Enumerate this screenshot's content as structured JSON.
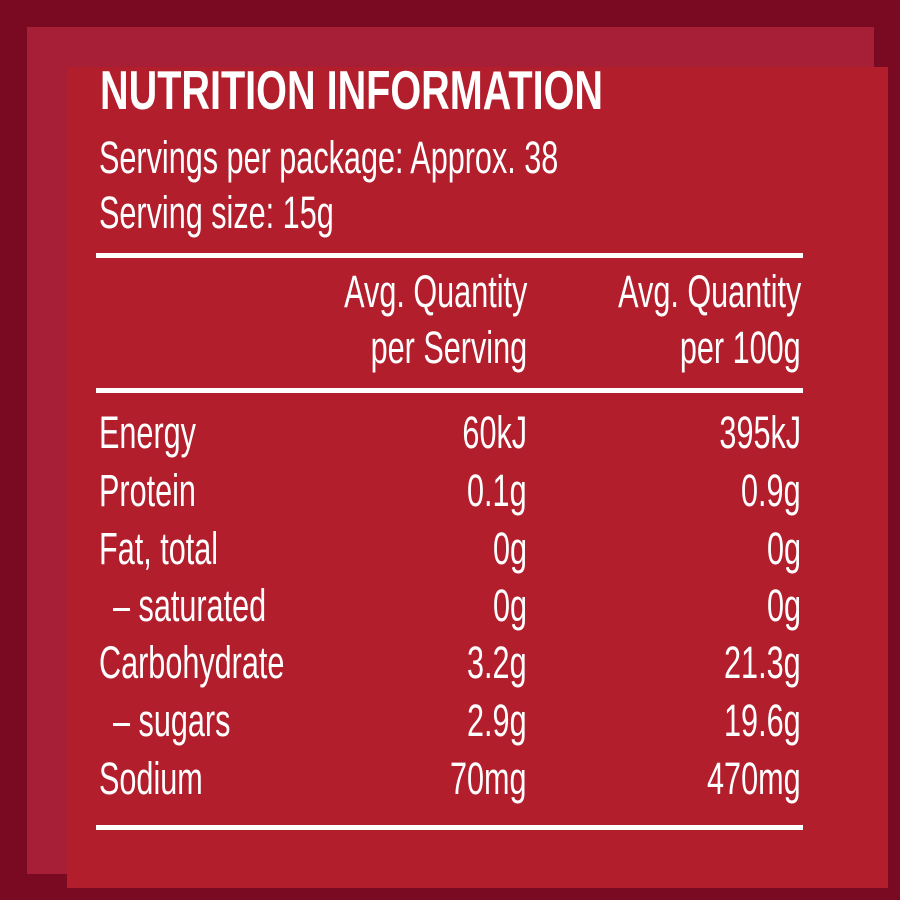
{
  "label": {
    "title": "NUTRITION INFORMATION",
    "servings_per_package": "Servings per package: Approx. 38",
    "serving_size": "Serving size: 15g",
    "columns": [
      {
        "line1": "Avg. Quantity",
        "line2": "per Serving"
      },
      {
        "line1": "Avg. Quantity",
        "line2": "per 100g"
      }
    ],
    "rows": [
      {
        "name": "Energy",
        "per_serving": "60kJ",
        "per_100g": "395kJ",
        "indent": false
      },
      {
        "name": "Protein",
        "per_serving": "0.1g",
        "per_100g": "0.9g",
        "indent": false
      },
      {
        "name": "Fat, total",
        "per_serving": "0g",
        "per_100g": "0g",
        "indent": false
      },
      {
        "name": "– saturated",
        "per_serving": "0g",
        "per_100g": "0g",
        "indent": true
      },
      {
        "name": "Carbohydrate",
        "per_serving": "3.2g",
        "per_100g": "21.3g",
        "indent": false
      },
      {
        "name": "– sugars",
        "per_serving": "2.9g",
        "per_100g": "19.6g",
        "indent": true
      },
      {
        "name": "Sodium",
        "per_serving": "70mg",
        "per_100g": "470mg",
        "indent": false
      }
    ]
  },
  "colors": {
    "outer_border": "#7a0a22",
    "inner_border": "#a61f37",
    "panel": "#b21e2c",
    "text": "#ffffff"
  }
}
